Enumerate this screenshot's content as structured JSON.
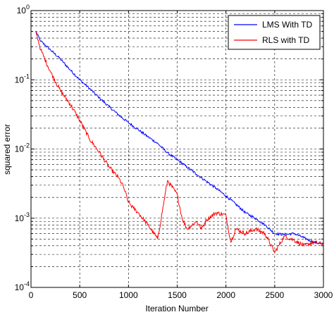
{
  "chart_data": {
    "type": "line",
    "title": "",
    "xlabel": "Iteration Number",
    "ylabel": "squared error",
    "xlim": [
      0,
      3000
    ],
    "ylim": [
      0.0001,
      1
    ],
    "y_scale": "log",
    "grid": true,
    "legend_position": "top-right",
    "x_ticks": [
      "0",
      "500",
      "1000",
      "1500",
      "2000",
      "2500",
      "3000"
    ],
    "y_ticks": [
      {
        "base": "10",
        "exp": "-4"
      },
      {
        "base": "10",
        "exp": "-3"
      },
      {
        "base": "10",
        "exp": "-2"
      },
      {
        "base": "10",
        "exp": "-1"
      },
      {
        "base": "10",
        "exp": "0"
      }
    ],
    "series": [
      {
        "name": "LMS With TD",
        "color": "#0000ff",
        "x": [
          50,
          100,
          200,
          300,
          400,
          500,
          600,
          700,
          800,
          900,
          1000,
          1100,
          1200,
          1300,
          1400,
          1500,
          1600,
          1700,
          1800,
          1900,
          2000,
          2100,
          2200,
          2300,
          2400,
          2500,
          2600,
          2700,
          2800,
          2900,
          3000
        ],
        "y": [
          0.5,
          0.36,
          0.27,
          0.2,
          0.14,
          0.1,
          0.075,
          0.055,
          0.041,
          0.031,
          0.024,
          0.019,
          0.015,
          0.012,
          0.0088,
          0.007,
          0.0055,
          0.0043,
          0.0034,
          0.0027,
          0.0021,
          0.0016,
          0.0012,
          0.001,
          0.0008,
          0.0006,
          0.00058,
          0.0006,
          0.00052,
          0.00045,
          0.00042
        ]
      },
      {
        "name": "RLS with TD",
        "color": "#ff0000",
        "x": [
          50,
          100,
          200,
          300,
          400,
          500,
          600,
          700,
          800,
          900,
          950,
          1000,
          1050,
          1100,
          1200,
          1300,
          1400,
          1500,
          1550,
          1600,
          1700,
          1750,
          1800,
          1900,
          2000,
          2050,
          2100,
          2200,
          2300,
          2400,
          2500,
          2600,
          2700,
          2800,
          2900,
          3000
        ],
        "y": [
          0.5,
          0.27,
          0.13,
          0.07,
          0.045,
          0.026,
          0.014,
          0.009,
          0.0055,
          0.0038,
          0.0028,
          0.0017,
          0.0014,
          0.0012,
          0.0008,
          0.0005,
          0.0035,
          0.0022,
          0.001,
          0.0007,
          0.0009,
          0.0007,
          0.00095,
          0.0012,
          0.0011,
          0.00045,
          0.0007,
          0.0006,
          0.0007,
          0.0006,
          0.00032,
          0.00055,
          0.00048,
          0.0004,
          0.00045,
          0.00042
        ]
      }
    ]
  }
}
